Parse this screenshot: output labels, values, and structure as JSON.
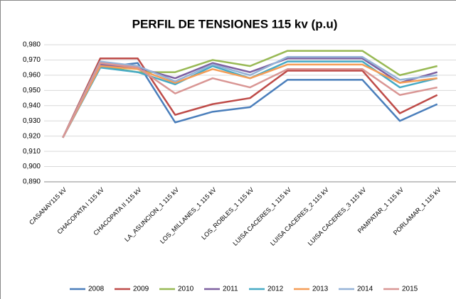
{
  "chart_data": {
    "type": "line",
    "title": "PERFIL DE TENSIONES 115 kv (p.u)",
    "categories": [
      "CASANAY115 kV",
      "CHACOPATA I 115 kV",
      "CHACOPATA II 115 kV",
      "LA_ASUNCION_1 115 kV",
      "LOS_MILLANES_1 115 kV",
      "LOS_ROBLES_1 115 kV",
      "LUISA CACERES_1 115 kV",
      "LUISA CACERES_2 115 kV",
      "LUISA CACERES_3 115 kV",
      "PAMPATAR_1 115 kV",
      "PORLAMAR_1 115 kV"
    ],
    "series": [
      {
        "name": "2008",
        "color": "#4a7ebb",
        "values": [
          0.919,
          0.965,
          0.968,
          0.929,
          0.936,
          0.939,
          0.957,
          0.957,
          0.957,
          0.93,
          0.941
        ]
      },
      {
        "name": "2009",
        "color": "#be4b48",
        "values": [
          0.919,
          0.971,
          0.971,
          0.934,
          0.941,
          0.945,
          0.963,
          0.963,
          0.963,
          0.935,
          0.947
        ]
      },
      {
        "name": "2010",
        "color": "#98b954",
        "values": [
          0.919,
          0.966,
          0.962,
          0.962,
          0.97,
          0.966,
          0.976,
          0.976,
          0.976,
          0.96,
          0.966
        ]
      },
      {
        "name": "2011",
        "color": "#7d60a0",
        "values": [
          0.919,
          0.967,
          0.965,
          0.958,
          0.968,
          0.962,
          0.971,
          0.971,
          0.971,
          0.955,
          0.962
        ]
      },
      {
        "name": "2012",
        "color": "#46aac5",
        "values": [
          0.919,
          0.965,
          0.962,
          0.954,
          0.966,
          0.958,
          0.969,
          0.969,
          0.969,
          0.952,
          0.958
        ]
      },
      {
        "name": "2013",
        "color": "#f59d56",
        "values": [
          0.919,
          0.966,
          0.964,
          0.955,
          0.964,
          0.958,
          0.967,
          0.967,
          0.967,
          0.955,
          0.958
        ]
      },
      {
        "name": "2014",
        "color": "#95b3d7",
        "values": [
          0.919,
          0.969,
          0.966,
          0.956,
          0.967,
          0.96,
          0.972,
          0.972,
          0.972,
          0.957,
          0.96
        ]
      },
      {
        "name": "2015",
        "color": "#d99694",
        "values": [
          0.919,
          0.968,
          0.965,
          0.948,
          0.958,
          0.952,
          0.964,
          0.964,
          0.964,
          0.947,
          0.952
        ]
      }
    ],
    "ylim": [
      0.89,
      0.98
    ],
    "yticks": [
      {
        "value": 0.89,
        "label": "0,890"
      },
      {
        "value": 0.9,
        "label": "0,900"
      },
      {
        "value": 0.91,
        "label": "0,910"
      },
      {
        "value": 0.92,
        "label": "0,920"
      },
      {
        "value": 0.93,
        "label": "0,930"
      },
      {
        "value": 0.94,
        "label": "0,940"
      },
      {
        "value": 0.95,
        "label": "0,950"
      },
      {
        "value": 0.96,
        "label": "0,960"
      },
      {
        "value": 0.97,
        "label": "0,970"
      },
      {
        "value": 0.98,
        "label": "0,980"
      }
    ],
    "grid": true,
    "legend": "bottom"
  }
}
